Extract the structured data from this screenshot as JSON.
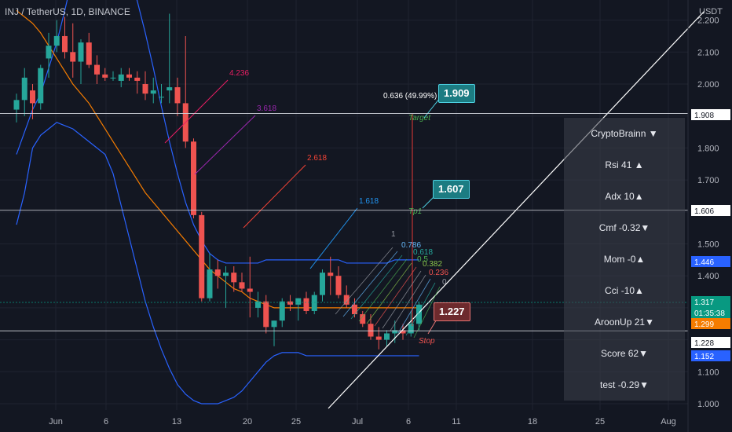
{
  "header": {
    "symbol": "INJ / TetherUS, 1D, BINANCE"
  },
  "price_axis": {
    "unit": "USDT",
    "ticks": [
      "2.200",
      "2.100",
      "2.000",
      "1.900",
      "1.800",
      "1.700",
      "1.600",
      "1.500",
      "1.400",
      "1.300",
      "1.200",
      "1.100",
      "1.000"
    ]
  },
  "time_axis": {
    "ticks": [
      "Jun",
      "6",
      "13",
      "20",
      "25",
      "Jul",
      "6",
      "11",
      "18",
      "25",
      "Aug"
    ]
  },
  "price_tags": [
    {
      "text": "1.908",
      "bg": "#ffffff",
      "fg": "#131722"
    },
    {
      "text": "1.606",
      "bg": "#ffffff",
      "fg": "#131722"
    },
    {
      "text": "1.446",
      "bg": "#2962ff",
      "fg": "#ffffff"
    },
    {
      "text": "1.317",
      "bg": "#089981",
      "fg": "#ffffff"
    },
    {
      "text": "01:35:38",
      "bg": "#089981",
      "fg": "#ffffff"
    },
    {
      "text": "1.299",
      "bg": "#f57c00",
      "fg": "#ffffff"
    },
    {
      "text": "1.228",
      "bg": "#ffffff",
      "fg": "#131722"
    },
    {
      "text": "1.152",
      "bg": "#2962ff",
      "fg": "#ffffff"
    }
  ],
  "fib_extension_labels": [
    {
      "text": "4.236",
      "color": "#e91e63"
    },
    {
      "text": "3.618",
      "color": "#9c27b0"
    },
    {
      "text": "2.618",
      "color": "#f44336"
    },
    {
      "text": "1.618",
      "color": "#2196f3"
    }
  ],
  "fib_fan_labels": [
    {
      "text": "1",
      "color": "#9598a1"
    },
    {
      "text": "0.786",
      "color": "#64b5f6"
    },
    {
      "text": "0.618",
      "color": "#26a69a"
    },
    {
      "text": "0.5",
      "color": "#4caf50"
    },
    {
      "text": "0.382",
      "color": "#8bc34a"
    },
    {
      "text": "0.236",
      "color": "#ef5350"
    },
    {
      "text": "0",
      "color": "#9598a1"
    }
  ],
  "annotations": {
    "measure": "0.636 (49.99%) 636",
    "target_label": "Target",
    "tp1_label": "Tp1",
    "stop_label": "Stop",
    "target_value": "1.909",
    "tp1_value": "1.607",
    "stop_value": "1.227"
  },
  "indicator_panel": {
    "rows": [
      "CryptoBrainn  ▼",
      "Rsi   41 ▲",
      "Adx   10▲",
      "Cmf -0.32▼",
      "Mom   -0▲",
      "Cci     -10▲",
      "AroonUp  21▼",
      "Score   62▼",
      "test   -0.29▼"
    ]
  },
  "colors": {
    "up": "#26a69a",
    "down": "#ef5350",
    "bollinger": "#2962ff",
    "ma": "#f57c00"
  },
  "chart_data": {
    "type": "candlestick",
    "title": "INJ / TetherUS, 1D, BINANCE",
    "y_unit": "USDT",
    "ylim": [
      0.97,
      2.24
    ],
    "candles": [
      {
        "o": 1.92,
        "h": 1.97,
        "l": 1.88,
        "c": 1.95
      },
      {
        "o": 1.95,
        "h": 2.05,
        "l": 1.9,
        "c": 2.02
      },
      {
        "o": 1.98,
        "h": 2.0,
        "l": 1.89,
        "c": 1.94
      },
      {
        "o": 1.94,
        "h": 2.06,
        "l": 1.92,
        "c": 2.05
      },
      {
        "o": 2.08,
        "h": 2.16,
        "l": 2.02,
        "c": 2.12
      },
      {
        "o": 2.12,
        "h": 2.2,
        "l": 2.1,
        "c": 2.15
      },
      {
        "o": 2.15,
        "h": 2.21,
        "l": 2.08,
        "c": 2.1
      },
      {
        "o": 2.1,
        "h": 2.19,
        "l": 2.02,
        "c": 2.07
      },
      {
        "o": 2.07,
        "h": 2.14,
        "l": 2.0,
        "c": 2.13
      },
      {
        "o": 2.13,
        "h": 2.16,
        "l": 2.05,
        "c": 2.06
      },
      {
        "o": 2.06,
        "h": 2.09,
        "l": 2.0,
        "c": 2.03
      },
      {
        "o": 2.03,
        "h": 2.05,
        "l": 2.01,
        "c": 2.02
      },
      {
        "o": 2.02,
        "h": 2.04,
        "l": 2.01,
        "c": 2.02
      },
      {
        "o": 2.01,
        "h": 2.05,
        "l": 1.99,
        "c": 2.03
      },
      {
        "o": 2.03,
        "h": 2.05,
        "l": 2.01,
        "c": 2.02
      },
      {
        "o": 2.02,
        "h": 2.04,
        "l": 1.97,
        "c": 2.01
      },
      {
        "o": 2.0,
        "h": 2.04,
        "l": 1.95,
        "c": 1.97
      },
      {
        "o": 1.97,
        "h": 2.02,
        "l": 1.94,
        "c": 1.98
      },
      {
        "o": 1.96,
        "h": 2.0,
        "l": 1.94,
        "c": 1.96
      },
      {
        "o": 1.98,
        "h": 2.22,
        "l": 1.94,
        "c": 1.99
      },
      {
        "o": 1.99,
        "h": 2.02,
        "l": 1.9,
        "c": 1.94
      },
      {
        "o": 1.94,
        "h": 2.15,
        "l": 1.8,
        "c": 1.82
      },
      {
        "o": 1.82,
        "h": 1.83,
        "l": 1.58,
        "c": 1.59
      },
      {
        "o": 1.59,
        "h": 1.6,
        "l": 1.32,
        "c": 1.33
      },
      {
        "o": 1.33,
        "h": 1.47,
        "l": 1.32,
        "c": 1.42
      },
      {
        "o": 1.42,
        "h": 1.45,
        "l": 1.36,
        "c": 1.4
      },
      {
        "o": 1.4,
        "h": 1.43,
        "l": 1.3,
        "c": 1.41
      },
      {
        "o": 1.41,
        "h": 1.43,
        "l": 1.35,
        "c": 1.38
      },
      {
        "o": 1.38,
        "h": 1.41,
        "l": 1.35,
        "c": 1.36
      },
      {
        "o": 1.36,
        "h": 1.46,
        "l": 1.27,
        "c": 1.35
      },
      {
        "o": 1.3,
        "h": 1.35,
        "l": 1.27,
        "c": 1.32
      },
      {
        "o": 1.32,
        "h": 1.34,
        "l": 1.22,
        "c": 1.24
      },
      {
        "o": 1.24,
        "h": 1.26,
        "l": 1.18,
        "c": 1.26
      },
      {
        "o": 1.26,
        "h": 1.33,
        "l": 1.24,
        "c": 1.32
      },
      {
        "o": 1.32,
        "h": 1.34,
        "l": 1.29,
        "c": 1.31
      },
      {
        "o": 1.31,
        "h": 1.33,
        "l": 1.26,
        "c": 1.33
      },
      {
        "o": 1.33,
        "h": 1.35,
        "l": 1.28,
        "c": 1.29
      },
      {
        "o": 1.29,
        "h": 1.35,
        "l": 1.28,
        "c": 1.34
      },
      {
        "o": 1.34,
        "h": 1.42,
        "l": 1.32,
        "c": 1.41
      },
      {
        "o": 1.41,
        "h": 1.46,
        "l": 1.34,
        "c": 1.4
      },
      {
        "o": 1.4,
        "h": 1.43,
        "l": 1.33,
        "c": 1.34
      },
      {
        "o": 1.34,
        "h": 1.37,
        "l": 1.3,
        "c": 1.31
      },
      {
        "o": 1.31,
        "h": 1.33,
        "l": 1.27,
        "c": 1.28
      },
      {
        "o": 1.28,
        "h": 1.29,
        "l": 1.24,
        "c": 1.25
      },
      {
        "o": 1.25,
        "h": 1.28,
        "l": 1.2,
        "c": 1.21
      },
      {
        "o": 1.21,
        "h": 1.24,
        "l": 1.17,
        "c": 1.2
      },
      {
        "o": 1.2,
        "h": 1.23,
        "l": 1.18,
        "c": 1.22
      },
      {
        "o": 1.22,
        "h": 1.26,
        "l": 1.19,
        "c": 1.23
      },
      {
        "o": 1.23,
        "h": 1.25,
        "l": 1.2,
        "c": 1.22
      },
      {
        "o": 1.22,
        "h": 1.29,
        "l": 1.21,
        "c": 1.25
      },
      {
        "o": 1.25,
        "h": 1.32,
        "l": 1.23,
        "c": 1.31
      }
    ],
    "bollinger_upper": [
      1.78,
      1.85,
      1.92,
      1.97,
      2.05,
      2.13,
      2.23,
      2.34,
      2.42,
      2.46,
      2.48,
      2.47,
      2.44,
      2.4,
      2.34,
      2.26,
      2.16,
      2.05,
      1.93,
      1.82,
      1.72,
      1.63,
      1.56,
      1.51,
      1.47,
      1.45,
      1.44,
      1.44,
      1.44,
      1.44,
      1.44,
      1.45,
      1.45,
      1.45,
      1.45,
      1.45,
      1.45,
      1.45,
      1.45,
      1.45,
      1.45,
      1.44,
      1.44,
      1.44,
      1.44,
      1.44,
      1.44,
      1.45,
      1.45,
      1.45,
      1.45
    ],
    "bollinger_lower": [
      1.56,
      1.66,
      1.8,
      1.84,
      1.86,
      1.88,
      1.87,
      1.86,
      1.84,
      1.82,
      1.8,
      1.78,
      1.72,
      1.62,
      1.52,
      1.42,
      1.32,
      1.24,
      1.17,
      1.11,
      1.06,
      1.03,
      1.01,
      1.0,
      1.0,
      1.0,
      1.01,
      1.02,
      1.04,
      1.07,
      1.1,
      1.13,
      1.15,
      1.16,
      1.16,
      1.16,
      1.15,
      1.15,
      1.15,
      1.15,
      1.15,
      1.15,
      1.15,
      1.15,
      1.15,
      1.15,
      1.15,
      1.15,
      1.15,
      1.15,
      1.15
    ],
    "moving_average": [
      2.23,
      2.21,
      2.19,
      2.16,
      2.12,
      2.08,
      2.04,
      2.0,
      1.97,
      1.94,
      1.9,
      1.86,
      1.82,
      1.78,
      1.74,
      1.7,
      1.66,
      1.63,
      1.6,
      1.57,
      1.54,
      1.51,
      1.48,
      1.45,
      1.42,
      1.4,
      1.38,
      1.36,
      1.35,
      1.33,
      1.32,
      1.31,
      1.3,
      1.3,
      1.3,
      1.3,
      1.3,
      1.3,
      1.3,
      1.3,
      1.3,
      1.3,
      1.3,
      1.3,
      1.3,
      1.3,
      1.3,
      1.3,
      1.3,
      1.3,
      1.3
    ],
    "horizontal_levels": [
      1.908,
      1.606,
      1.228,
      1.317
    ],
    "grid": true
  }
}
